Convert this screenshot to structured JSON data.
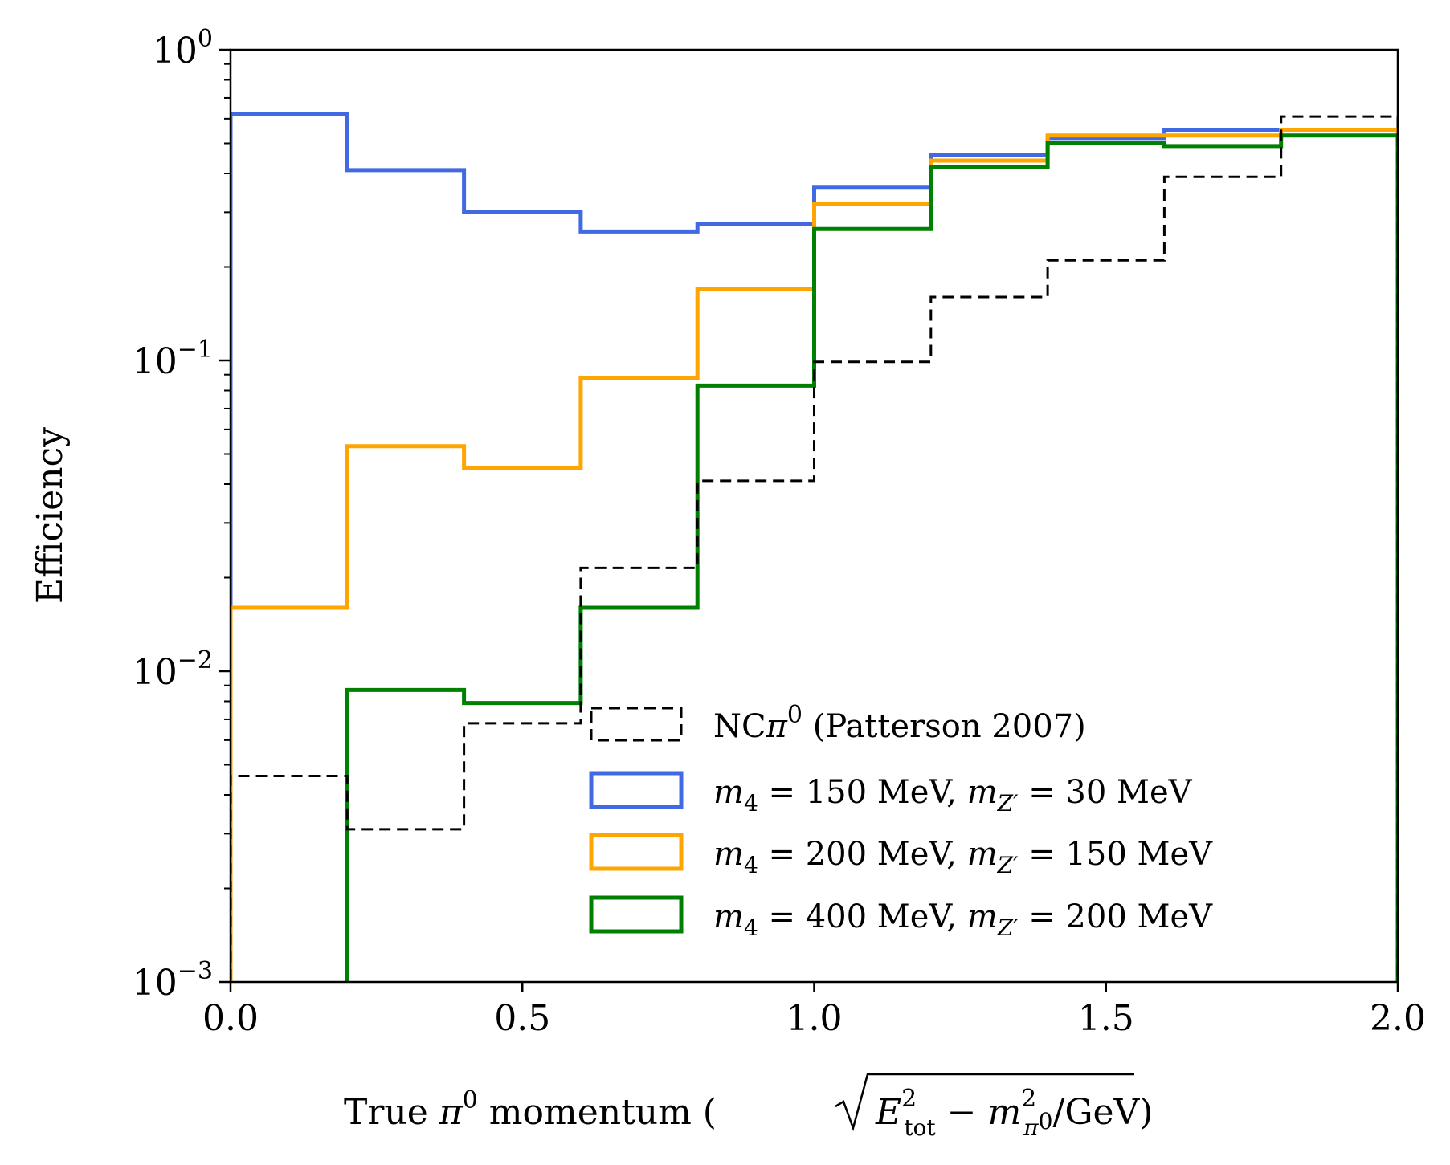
{
  "chart_data": {
    "type": "line",
    "step": true,
    "yscale": "log",
    "xlim": [
      0,
      2
    ],
    "ylim": [
      0.001,
      1
    ],
    "xlabel": "True π⁰ momentum (√(E²tot − m²π⁰)/GeV)",
    "ylabel": "Efficiency",
    "legend": "lower-right",
    "grid": false,
    "xticks": [
      0.0,
      0.5,
      1.0,
      1.5,
      2.0
    ],
    "xtick_labels": [
      "0.0",
      "0.5",
      "1.0",
      "1.5",
      "2.0"
    ],
    "yticks": [
      1,
      0.1,
      0.01,
      0.001
    ],
    "ytick_labels": [
      {
        "base": "10",
        "exp": "0"
      },
      {
        "base": "10",
        "exp": "−1"
      },
      {
        "base": "10",
        "exp": "−2"
      },
      {
        "base": "10",
        "exp": "−3"
      }
    ],
    "bin_edges": [
      0,
      0.2,
      0.4,
      0.6,
      0.8,
      1.0,
      1.2,
      1.4,
      1.6,
      1.8,
      2.0
    ],
    "series": [
      {
        "name": "NCπ⁰ (Patterson 2007)",
        "color": "#000000",
        "dashed": true,
        "values": [
          0.0046,
          0.0031,
          0.0068,
          0.0215,
          0.041,
          0.099,
          0.16,
          0.21,
          0.39,
          0.61
        ]
      },
      {
        "name": "m4 = 150 MeV, mZ′ = 30 MeV",
        "color": "#4169e1",
        "dashed": false,
        "values": [
          0.62,
          0.41,
          0.3,
          0.26,
          0.275,
          0.36,
          0.46,
          0.52,
          0.55,
          0.55
        ]
      },
      {
        "name": "m4 = 200 MeV, mZ′ = 150 MeV",
        "color": "#ffa500",
        "dashed": false,
        "values": [
          0.016,
          0.053,
          0.045,
          0.088,
          0.17,
          0.32,
          0.44,
          0.53,
          0.53,
          0.55
        ]
      },
      {
        "name": "m4 = 400 MeV, mZ′ = 200 MeV",
        "color": "#008000",
        "dashed": false,
        "values": [
          0.0009,
          0.0087,
          0.0079,
          0.016,
          0.083,
          0.265,
          0.42,
          0.5,
          0.49,
          0.53
        ]
      }
    ]
  }
}
